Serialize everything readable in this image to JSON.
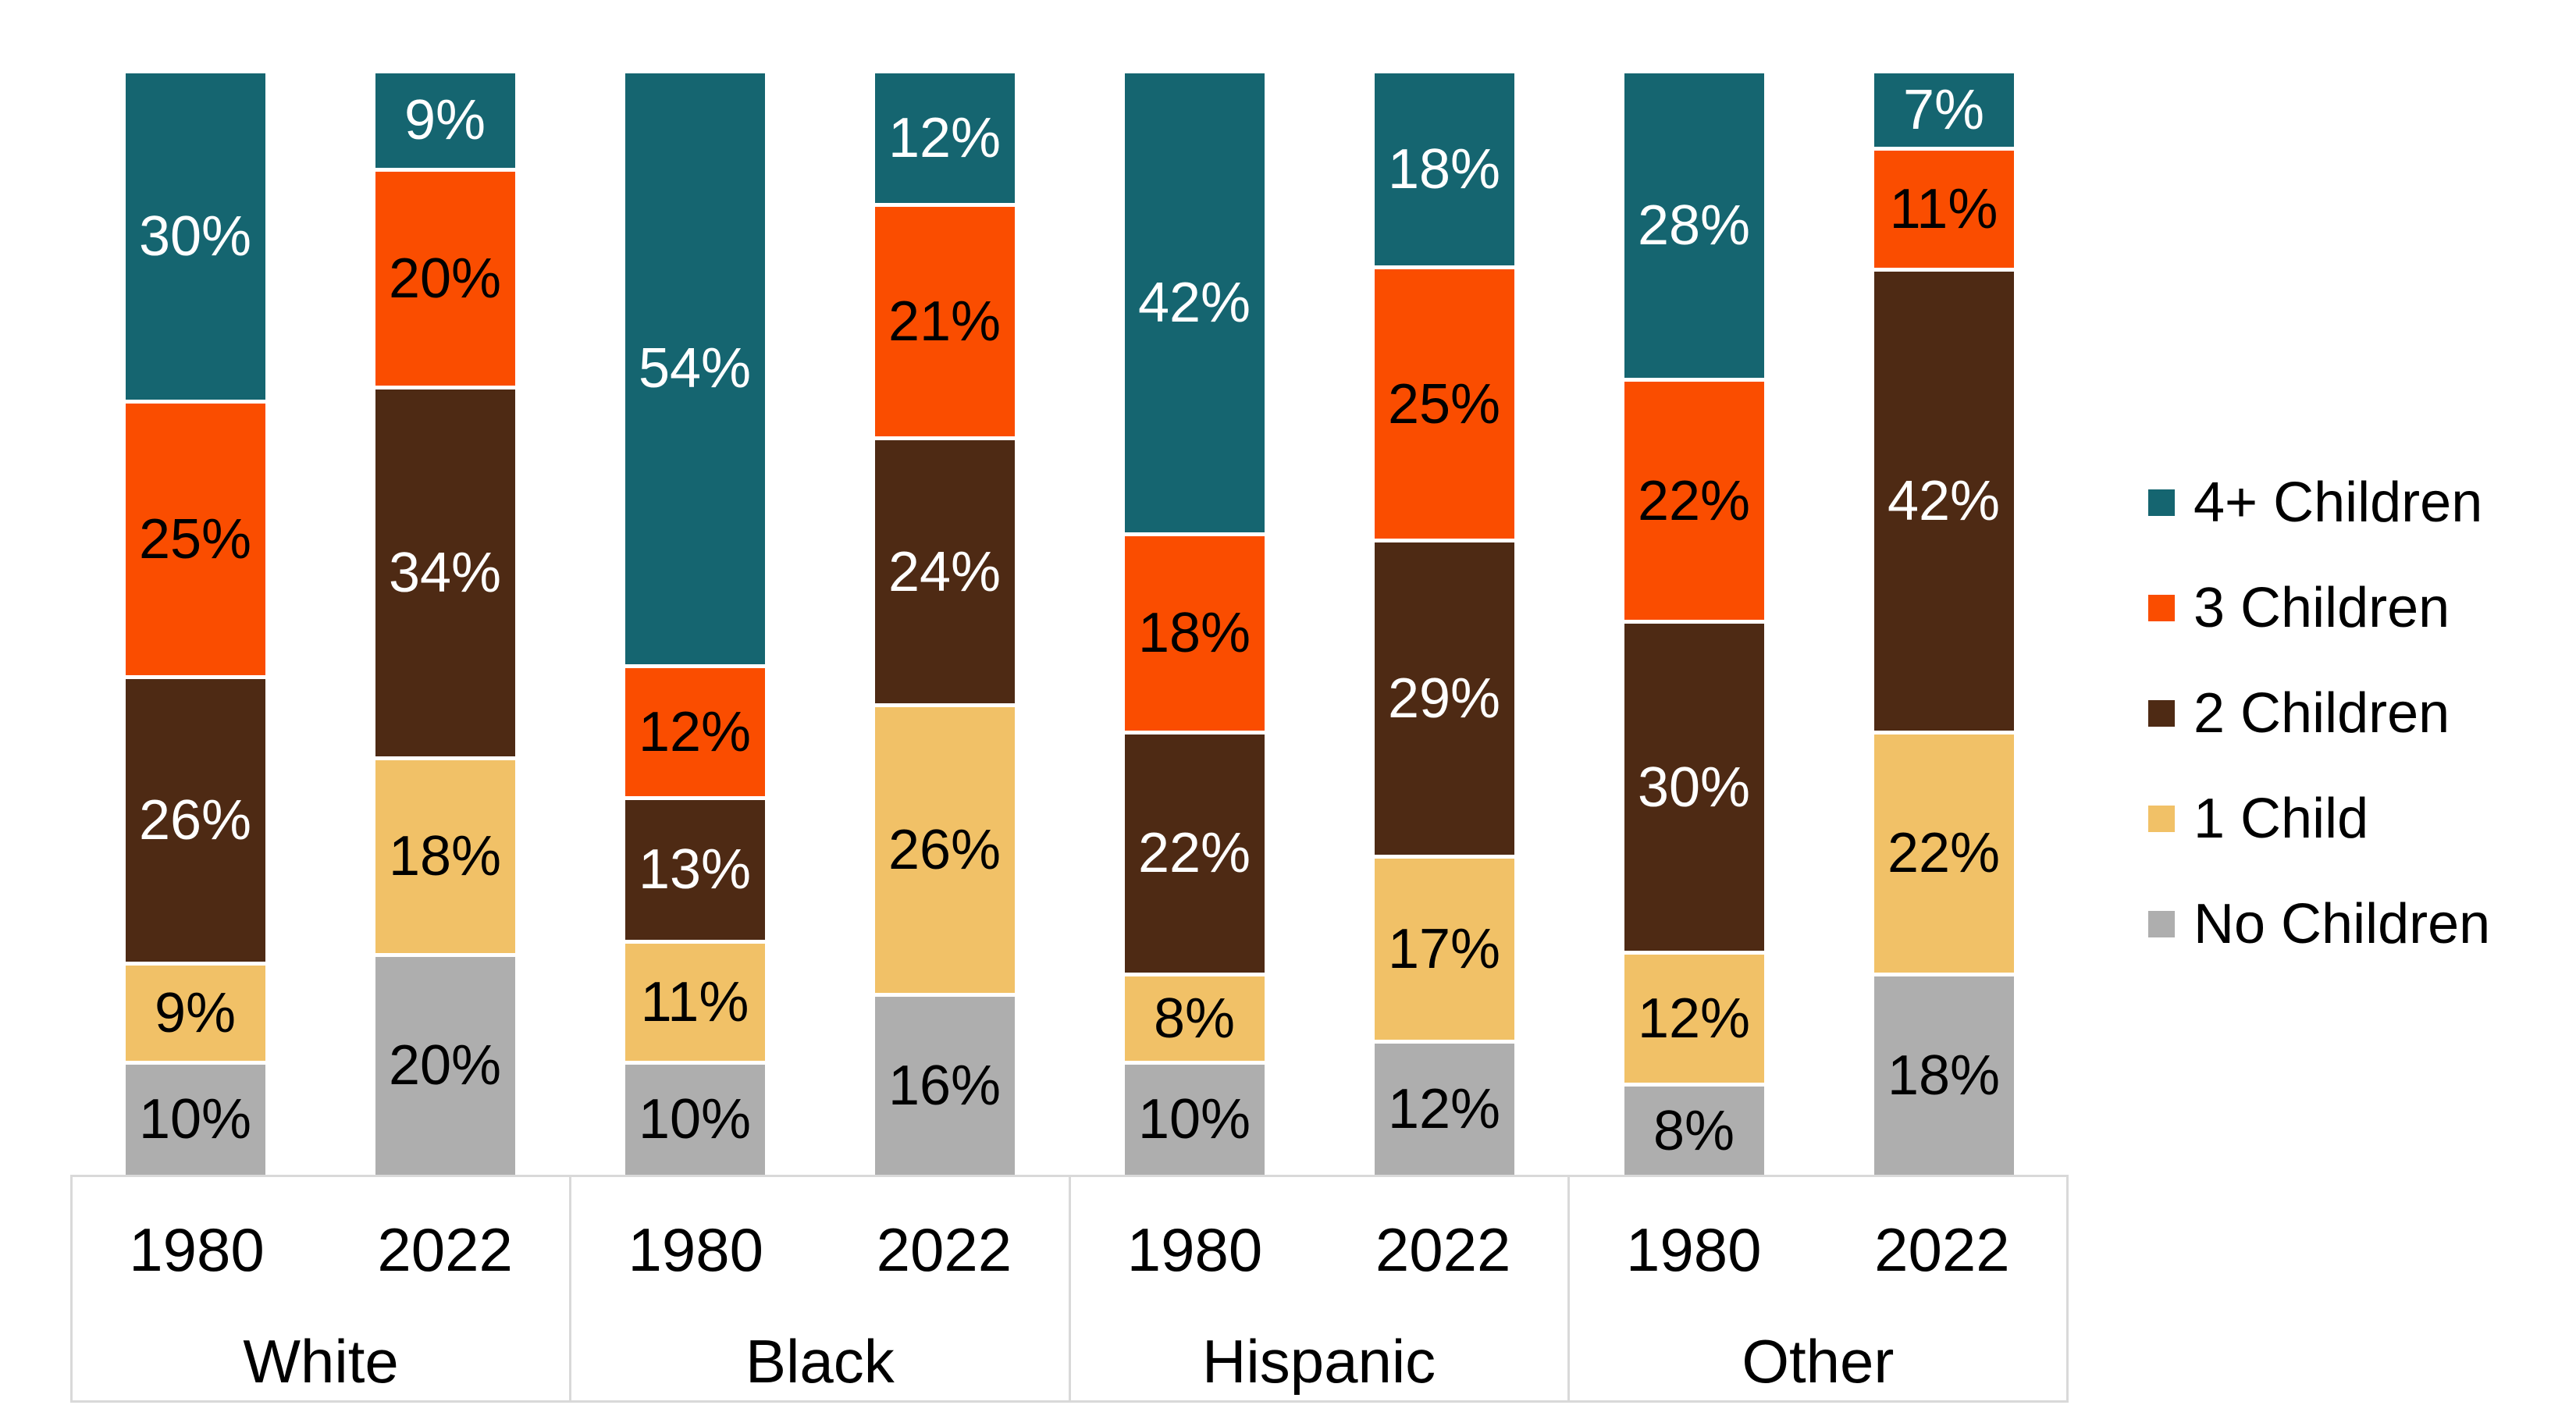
{
  "chart_data": {
    "type": "bar",
    "stacked": true,
    "percent_scale": true,
    "title": "",
    "value_suffix": "%",
    "legend_position": "right",
    "axis_border_color": "#D9D9D9",
    "segment_gap_color": "#FFFFFF",
    "series": [
      {
        "name": "4+ Children",
        "color": "#156570",
        "text_color": "#FFFFFF"
      },
      {
        "name": "3 Children",
        "color": "#FA4D00",
        "text_color": "#000000"
      },
      {
        "name": "2 Children",
        "color": "#4E2A14",
        "text_color": "#FFFFFF"
      },
      {
        "name": "1 Child",
        "color": "#F1C167",
        "text_color": "#000000"
      },
      {
        "name": "No Children",
        "color": "#AEAEAE",
        "text_color": "#000000"
      }
    ],
    "series_order": "top-to-bottom",
    "groups": [
      {
        "label": "White",
        "bars": [
          {
            "year": "1980",
            "values": [
              30,
              25,
              26,
              9,
              10
            ]
          },
          {
            "year": "2022",
            "values": [
              9,
              20,
              34,
              18,
              20
            ]
          }
        ]
      },
      {
        "label": "Black",
        "bars": [
          {
            "year": "1980",
            "values": [
              54,
              12,
              13,
              11,
              10
            ]
          },
          {
            "year": "2022",
            "values": [
              12,
              21,
              24,
              26,
              16
            ]
          }
        ]
      },
      {
        "label": "Hispanic",
        "bars": [
          {
            "year": "1980",
            "values": [
              42,
              18,
              22,
              8,
              10
            ]
          },
          {
            "year": "2022",
            "values": [
              18,
              25,
              29,
              17,
              12
            ]
          }
        ]
      },
      {
        "label": "Other",
        "bars": [
          {
            "year": "1980",
            "values": [
              28,
              22,
              30,
              12,
              8
            ]
          },
          {
            "year": "2022",
            "values": [
              7,
              11,
              42,
              22,
              18
            ]
          }
        ]
      }
    ]
  }
}
